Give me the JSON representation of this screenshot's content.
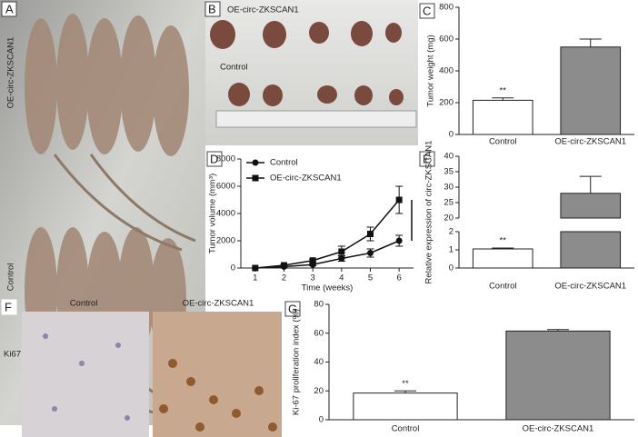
{
  "panels": {
    "A": "A",
    "A_top": "OE-circ-ZKSCAN1",
    "A_bottom": "Control",
    "B": "B",
    "B_top": "OE-circ-ZKSCAN1",
    "B_bottom": "Control",
    "F": "F",
    "F_left": "Control",
    "F_right": "OE-circ-ZKSCAN1",
    "F_row": "Ki67"
  },
  "chart_data": [
    {
      "type": "bar",
      "panel_label": "C",
      "y_label": "Tumor weight (mg)",
      "categories": [
        "Control",
        "OE-circ-ZKSCAN1"
      ],
      "values": [
        215,
        550
      ],
      "errors": [
        15,
        50
      ],
      "colors": [
        "#ffffff",
        "#8c8c8c"
      ],
      "ylim": [
        0,
        800
      ],
      "yticks": [
        0,
        200,
        400,
        600,
        800
      ],
      "significance": "**"
    },
    {
      "type": "line",
      "panel_label": "D",
      "y_label": "Tumor volume (mm³)",
      "x_label": "Time (weeks)",
      "x": [
        1,
        2,
        3,
        4,
        5,
        6
      ],
      "xlim": [
        0.5,
        6.5
      ],
      "xticks": [
        1,
        2,
        3,
        4,
        5,
        6
      ],
      "ylim": [
        0,
        8000
      ],
      "yticks": [
        0,
        2000,
        4000,
        6000,
        8000
      ],
      "series": [
        {
          "name": "Control",
          "color": "#111111",
          "marker": "circle",
          "values": [
            0,
            100,
            250,
            700,
            1100,
            2000
          ],
          "errors": [
            0,
            30,
            80,
            200,
            300,
            400
          ]
        },
        {
          "name": "OE-circ-ZKSCAN1",
          "color": "#111111",
          "marker": "square",
          "values": [
            0,
            200,
            550,
            1200,
            2500,
            5000
          ],
          "errors": [
            0,
            50,
            100,
            400,
            500,
            1000
          ]
        }
      ]
    },
    {
      "type": "broken-bar",
      "panel_label": "E",
      "y_label": "Relative expression of circ-ZKSCAN1",
      "categories": [
        "Control",
        "OE-circ-ZKSCAN1"
      ],
      "values": [
        1.05,
        28
      ],
      "errors": [
        0.05,
        5.5
      ],
      "colors": [
        "#ffffff",
        "#8c8c8c"
      ],
      "ylim_lower": [
        0,
        2
      ],
      "yticks_lower": [
        0,
        1,
        2
      ],
      "ylim_upper": [
        20,
        40
      ],
      "yticks_upper": [
        20,
        25,
        30,
        35,
        40
      ],
      "significance": "**"
    },
    {
      "type": "bar",
      "panel_label": "G",
      "y_label": "Ki-67 proliferation index (%)",
      "categories": [
        "Control",
        "OE-circ-ZKSCAN1"
      ],
      "values": [
        18.5,
        61.5
      ],
      "errors": [
        1.5,
        1
      ],
      "colors": [
        "#ffffff",
        "#8c8c8c"
      ],
      "ylim": [
        0,
        80
      ],
      "yticks": [
        0,
        20,
        40,
        60,
        80
      ],
      "significance": "**"
    }
  ]
}
